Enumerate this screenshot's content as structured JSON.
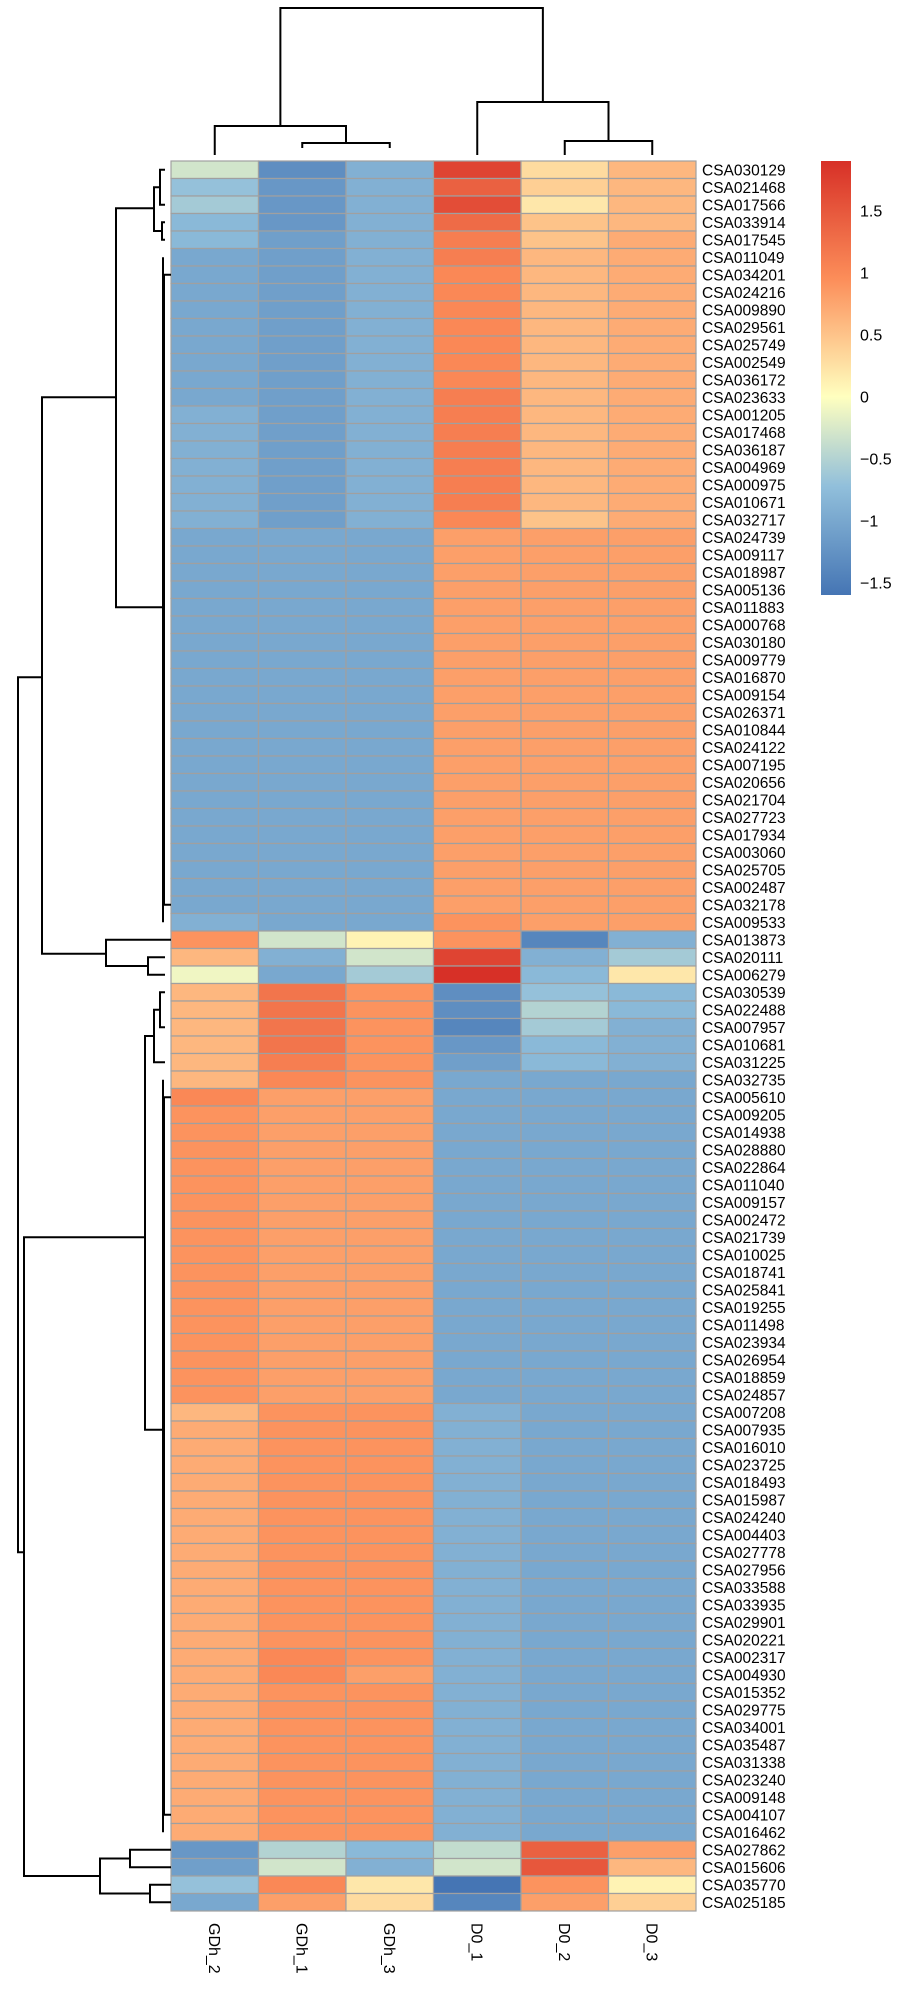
{
  "chart_data": {
    "type": "heatmap",
    "title": "",
    "xlabel": "",
    "ylabel": "",
    "columns": [
      "GDh_2",
      "GDh_1",
      "GDh_3",
      "D0_1",
      "D0_2",
      "D0_3"
    ],
    "rows": [
      "CSA030129",
      "CSA021468",
      "CSA017566",
      "CSA033914",
      "CSA017545",
      "CSA011049",
      "CSA034201",
      "CSA024216",
      "CSA009890",
      "CSA029561",
      "CSA025749",
      "CSA002549",
      "CSA036172",
      "CSA023633",
      "CSA001205",
      "CSA017468",
      "CSA036187",
      "CSA004969",
      "CSA000975",
      "CSA010671",
      "CSA032717",
      "CSA024739",
      "CSA009117",
      "CSA018987",
      "CSA005136",
      "CSA011883",
      "CSA000768",
      "CSA030180",
      "CSA009779",
      "CSA016870",
      "CSA009154",
      "CSA026371",
      "CSA010844",
      "CSA024122",
      "CSA007195",
      "CSA020656",
      "CSA021704",
      "CSA027723",
      "CSA017934",
      "CSA003060",
      "CSA025705",
      "CSA002487",
      "CSA032178",
      "CSA009533",
      "CSA013873",
      "CSA020111",
      "CSA006279",
      "CSA030539",
      "CSA022488",
      "CSA007957",
      "CSA010681",
      "CSA031225",
      "CSA032735",
      "CSA005610",
      "CSA009205",
      "CSA014938",
      "CSA028880",
      "CSA022864",
      "CSA011040",
      "CSA009157",
      "CSA002472",
      "CSA021739",
      "CSA010025",
      "CSA018741",
      "CSA025841",
      "CSA019255",
      "CSA011498",
      "CSA023934",
      "CSA026954",
      "CSA018859",
      "CSA024857",
      "CSA007208",
      "CSA007935",
      "CSA016010",
      "CSA023725",
      "CSA018493",
      "CSA015987",
      "CSA024240",
      "CSA004403",
      "CSA027778",
      "CSA027956",
      "CSA033588",
      "CSA033935",
      "CSA029901",
      "CSA020221",
      "CSA002317",
      "CSA004930",
      "CSA015352",
      "CSA029775",
      "CSA034001",
      "CSA035487",
      "CSA031338",
      "CSA023240",
      "CSA009148",
      "CSA004107",
      "CSA016462",
      "CSA027862",
      "CSA015606",
      "CSA035770",
      "CSA025185"
    ],
    "values": [
      [
        -0.3,
        -1.3,
        -0.9,
        1.7,
        0.3,
        0.6
      ],
      [
        -0.7,
        -1.2,
        -0.9,
        1.4,
        0.4,
        0.6
      ],
      [
        -0.6,
        -1.2,
        -0.9,
        1.6,
        0.2,
        0.6
      ],
      [
        -0.8,
        -1.2,
        -0.9,
        1.3,
        0.5,
        0.6
      ],
      [
        -0.8,
        -1.1,
        -0.9,
        1.1,
        0.5,
        0.7
      ],
      [
        -1.0,
        -1.1,
        -0.9,
        1.1,
        0.6,
        0.7
      ],
      [
        -1.0,
        -1.1,
        -0.9,
        1.0,
        0.6,
        0.7
      ],
      [
        -1.0,
        -1.1,
        -0.9,
        1.0,
        0.6,
        0.7
      ],
      [
        -1.0,
        -1.1,
        -0.9,
        1.0,
        0.6,
        0.7
      ],
      [
        -1.0,
        -1.1,
        -0.9,
        1.0,
        0.6,
        0.7
      ],
      [
        -1.0,
        -1.1,
        -0.9,
        1.0,
        0.6,
        0.7
      ],
      [
        -1.0,
        -1.1,
        -0.9,
        1.0,
        0.6,
        0.7
      ],
      [
        -1.0,
        -1.1,
        -0.9,
        1.0,
        0.6,
        0.7
      ],
      [
        -1.0,
        -1.1,
        -0.9,
        1.1,
        0.6,
        0.7
      ],
      [
        -0.9,
        -1.1,
        -0.9,
        1.1,
        0.6,
        0.7
      ],
      [
        -0.9,
        -1.1,
        -0.9,
        1.1,
        0.6,
        0.7
      ],
      [
        -0.9,
        -1.1,
        -0.9,
        1.1,
        0.6,
        0.7
      ],
      [
        -0.9,
        -1.1,
        -0.9,
        1.1,
        0.6,
        0.7
      ],
      [
        -0.9,
        -1.1,
        -0.9,
        1.1,
        0.6,
        0.7
      ],
      [
        -0.9,
        -1.1,
        -0.9,
        1.1,
        0.6,
        0.7
      ],
      [
        -0.9,
        -1.1,
        -0.9,
        1.0,
        0.5,
        0.7
      ],
      [
        -1.0,
        -1.0,
        -1.0,
        0.8,
        0.8,
        0.8
      ],
      [
        -1.0,
        -1.0,
        -1.0,
        0.8,
        0.8,
        0.8
      ],
      [
        -1.0,
        -1.0,
        -1.0,
        0.8,
        0.8,
        0.8
      ],
      [
        -1.0,
        -1.0,
        -1.0,
        0.8,
        0.8,
        0.8
      ],
      [
        -1.0,
        -1.0,
        -1.0,
        0.8,
        0.8,
        0.8
      ],
      [
        -1.0,
        -1.0,
        -1.0,
        0.8,
        0.8,
        0.8
      ],
      [
        -1.0,
        -1.0,
        -1.0,
        0.8,
        0.8,
        0.8
      ],
      [
        -1.0,
        -1.0,
        -1.0,
        0.8,
        0.8,
        0.8
      ],
      [
        -1.0,
        -1.0,
        -1.0,
        0.8,
        0.8,
        0.8
      ],
      [
        -1.0,
        -1.0,
        -1.0,
        0.8,
        0.8,
        0.8
      ],
      [
        -1.0,
        -1.0,
        -1.0,
        0.8,
        0.8,
        0.8
      ],
      [
        -1.0,
        -1.0,
        -1.0,
        0.8,
        0.8,
        0.8
      ],
      [
        -1.0,
        -1.0,
        -1.0,
        0.8,
        0.8,
        0.8
      ],
      [
        -1.0,
        -1.0,
        -1.0,
        0.8,
        0.8,
        0.8
      ],
      [
        -1.0,
        -1.0,
        -1.0,
        0.8,
        0.8,
        0.8
      ],
      [
        -1.0,
        -1.0,
        -1.0,
        0.8,
        0.8,
        0.8
      ],
      [
        -1.0,
        -1.0,
        -1.0,
        0.8,
        0.8,
        0.8
      ],
      [
        -1.0,
        -1.0,
        -1.0,
        0.8,
        0.8,
        0.8
      ],
      [
        -1.0,
        -1.0,
        -1.0,
        0.8,
        0.8,
        0.8
      ],
      [
        -1.0,
        -1.0,
        -1.0,
        0.8,
        0.8,
        0.8
      ],
      [
        -1.0,
        -1.0,
        -1.0,
        0.8,
        0.8,
        0.8
      ],
      [
        -1.0,
        -1.0,
        -1.0,
        0.8,
        0.8,
        0.8
      ],
      [
        -0.9,
        -1.0,
        -1.0,
        0.9,
        0.8,
        0.8
      ],
      [
        0.9,
        -0.3,
        0.1,
        0.9,
        -1.4,
        -0.9
      ],
      [
        0.6,
        -0.9,
        -0.3,
        1.7,
        -0.9,
        -0.6
      ],
      [
        -0.1,
        -1.0,
        -0.6,
        1.9,
        -0.8,
        0.2
      ],
      [
        0.6,
        1.2,
        0.9,
        -1.3,
        -0.7,
        -0.8
      ],
      [
        0.6,
        1.2,
        0.9,
        -1.3,
        -0.5,
        -0.8
      ],
      [
        0.6,
        1.2,
        0.9,
        -1.4,
        -0.6,
        -0.9
      ],
      [
        0.6,
        1.2,
        0.9,
        -1.2,
        -0.8,
        -0.9
      ],
      [
        0.6,
        1.1,
        0.9,
        -1.1,
        -0.8,
        -0.9
      ],
      [
        0.6,
        1.0,
        0.9,
        -1.0,
        -1.0,
        -1.0
      ],
      [
        1.0,
        0.8,
        0.8,
        -1.0,
        -1.0,
        -1.0
      ],
      [
        0.9,
        0.8,
        0.8,
        -1.0,
        -1.0,
        -1.0
      ],
      [
        0.9,
        0.8,
        0.8,
        -1.0,
        -1.0,
        -1.0
      ],
      [
        0.9,
        0.8,
        0.8,
        -1.0,
        -1.0,
        -1.0
      ],
      [
        0.9,
        0.8,
        0.8,
        -1.0,
        -1.0,
        -1.0
      ],
      [
        0.9,
        0.8,
        0.8,
        -1.0,
        -1.0,
        -1.0
      ],
      [
        0.9,
        0.8,
        0.8,
        -1.0,
        -1.0,
        -1.0
      ],
      [
        0.9,
        0.8,
        0.8,
        -1.0,
        -1.0,
        -1.0
      ],
      [
        0.9,
        0.8,
        0.8,
        -1.0,
        -1.0,
        -1.0
      ],
      [
        0.9,
        0.8,
        0.8,
        -1.0,
        -1.0,
        -1.0
      ],
      [
        0.9,
        0.8,
        0.8,
        -1.0,
        -1.0,
        -1.0
      ],
      [
        0.9,
        0.8,
        0.8,
        -1.0,
        -1.0,
        -1.0
      ],
      [
        0.9,
        0.8,
        0.8,
        -1.0,
        -1.0,
        -1.0
      ],
      [
        0.9,
        0.8,
        0.8,
        -1.0,
        -1.0,
        -1.0
      ],
      [
        0.9,
        0.8,
        0.8,
        -1.0,
        -1.0,
        -1.0
      ],
      [
        0.9,
        0.8,
        0.8,
        -1.0,
        -1.0,
        -1.0
      ],
      [
        0.9,
        0.8,
        0.8,
        -1.0,
        -1.0,
        -1.0
      ],
      [
        0.9,
        0.8,
        0.8,
        -1.0,
        -1.0,
        -1.0
      ],
      [
        0.6,
        0.9,
        0.9,
        -0.9,
        -1.0,
        -1.0
      ],
      [
        0.7,
        0.9,
        0.9,
        -0.9,
        -1.0,
        -1.0
      ],
      [
        0.7,
        0.9,
        0.9,
        -0.9,
        -1.0,
        -1.0
      ],
      [
        0.7,
        0.9,
        0.9,
        -0.9,
        -1.0,
        -1.0
      ],
      [
        0.7,
        0.9,
        0.9,
        -0.9,
        -1.0,
        -1.0
      ],
      [
        0.7,
        0.9,
        0.9,
        -0.9,
        -1.0,
        -1.0
      ],
      [
        0.7,
        0.9,
        0.9,
        -0.9,
        -1.0,
        -1.0
      ],
      [
        0.7,
        0.9,
        0.9,
        -0.9,
        -1.0,
        -1.0
      ],
      [
        0.7,
        0.9,
        0.9,
        -0.9,
        -1.0,
        -1.0
      ],
      [
        0.7,
        0.9,
        0.9,
        -0.9,
        -1.0,
        -1.0
      ],
      [
        0.7,
        0.9,
        0.9,
        -0.9,
        -1.0,
        -1.0
      ],
      [
        0.7,
        0.9,
        0.9,
        -0.9,
        -1.0,
        -1.0
      ],
      [
        0.7,
        0.9,
        0.9,
        -0.9,
        -1.0,
        -1.0
      ],
      [
        0.7,
        0.9,
        0.9,
        -0.9,
        -1.0,
        -1.0
      ],
      [
        0.7,
        1.0,
        0.9,
        -0.9,
        -1.0,
        -1.0
      ],
      [
        0.7,
        1.0,
        0.8,
        -0.9,
        -1.0,
        -1.0
      ],
      [
        0.7,
        0.9,
        0.9,
        -0.9,
        -1.0,
        -1.0
      ],
      [
        0.7,
        0.9,
        0.9,
        -0.9,
        -1.0,
        -1.0
      ],
      [
        0.7,
        0.9,
        0.9,
        -0.9,
        -1.0,
        -1.0
      ],
      [
        0.7,
        0.9,
        0.9,
        -0.9,
        -1.0,
        -1.0
      ],
      [
        0.7,
        0.9,
        0.9,
        -0.9,
        -1.0,
        -1.0
      ],
      [
        0.7,
        0.9,
        0.9,
        -0.9,
        -1.0,
        -1.0
      ],
      [
        0.7,
        0.9,
        0.9,
        -0.9,
        -1.0,
        -1.0
      ],
      [
        0.7,
        0.9,
        0.9,
        -0.9,
        -1.0,
        -1.0
      ],
      [
        0.7,
        0.9,
        0.9,
        -0.9,
        -1.0,
        -1.0
      ],
      [
        -1.2,
        -0.5,
        -0.8,
        -0.4,
        1.4,
        0.8
      ],
      [
        -1.1,
        -0.3,
        -0.9,
        -0.3,
        1.5,
        0.6
      ],
      [
        -0.7,
        1.0,
        0.2,
        -1.6,
        0.9,
        0.1
      ],
      [
        -1.0,
        0.8,
        0.3,
        -1.4,
        0.8,
        0.4
      ]
    ],
    "colorbar": {
      "ticks": [
        "1.5",
        "1",
        "0.5",
        "0",
        "−0.5",
        "−1",
        "−1.5"
      ],
      "tick_values": [
        1.5,
        1,
        0.5,
        0,
        -0.5,
        -1,
        -1.5
      ],
      "range": [
        -1.6,
        1.9
      ],
      "colors": {
        "low": "#4575b4",
        "mid": "#ffffbf",
        "high": "#d73027"
      }
    },
    "cluster_groups": {
      "column_tree": "((GDh_2,(GDh_1,GDh_3)),(D0_1,(D0_2,D0_3)))",
      "row_groups": [
        "1-44",
        "45-47",
        "48-96",
        "97-100"
      ]
    },
    "grid": true,
    "legend": "right"
  }
}
